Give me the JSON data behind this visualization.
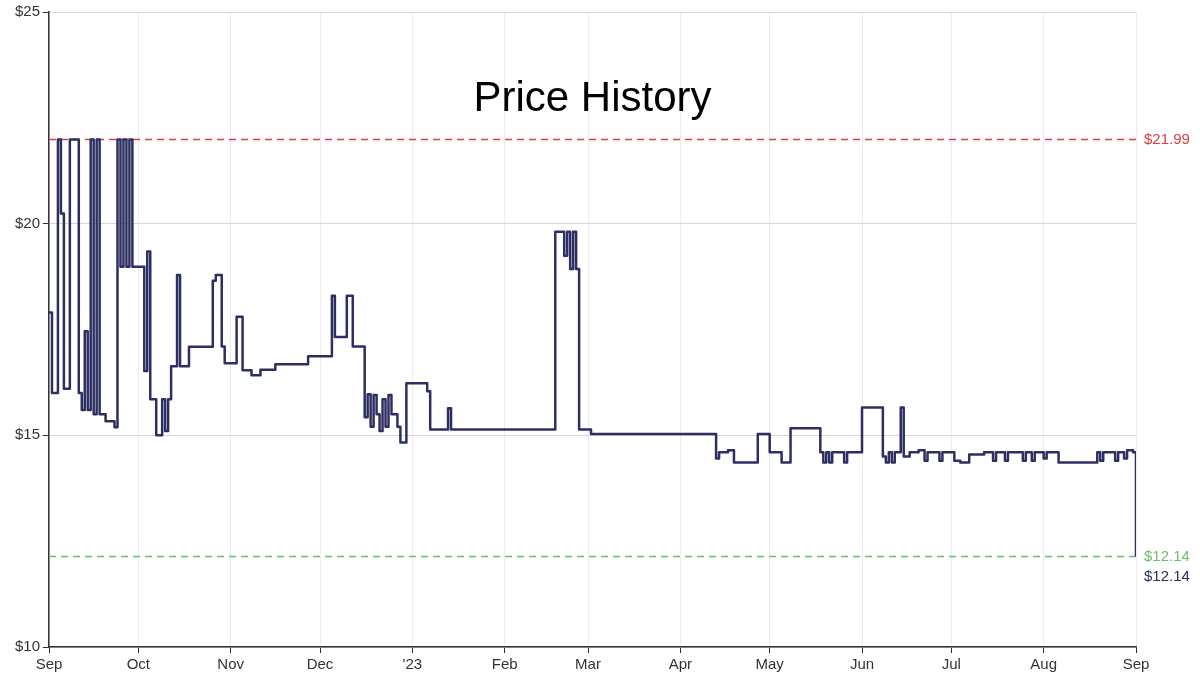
{
  "chart_data": {
    "type": "step",
    "title": "Price History",
    "series": [
      {
        "color": "#2d2f63",
        "x": [
          "2022-09-01",
          "2022-09-02",
          "2022-09-04",
          "2022-09-05",
          "2022-09-06",
          "2022-09-08",
          "2022-09-11",
          "2022-09-12",
          "2022-09-13",
          "2022-09-14",
          "2022-09-15",
          "2022-09-16",
          "2022-09-17",
          "2022-09-18",
          "2022-09-20",
          "2022-09-23",
          "2022-09-24",
          "2022-09-25",
          "2022-09-26",
          "2022-09-27",
          "2022-09-28",
          "2022-09-29",
          "2022-10-03",
          "2022-10-04",
          "2022-10-05",
          "2022-10-07",
          "2022-10-09",
          "2022-10-10",
          "2022-10-11",
          "2022-10-12",
          "2022-10-14",
          "2022-10-15",
          "2022-10-18",
          "2022-10-26",
          "2022-10-27",
          "2022-10-29",
          "2022-10-30",
          "2022-11-03",
          "2022-11-05",
          "2022-11-08",
          "2022-11-11",
          "2022-11-16",
          "2022-11-27",
          "2022-12-05",
          "2022-12-06",
          "2022-12-10",
          "2022-12-12",
          "2022-12-16",
          "2022-12-17",
          "2022-12-18",
          "2022-12-19",
          "2022-12-20",
          "2022-12-21",
          "2022-12-22",
          "2022-12-23",
          "2022-12-24",
          "2022-12-25",
          "2022-12-27",
          "2022-12-28",
          "2022-12-30",
          "2023-01-06",
          "2023-01-07",
          "2023-01-13",
          "2023-01-14",
          "2023-02-18",
          "2023-02-21",
          "2023-02-22",
          "2023-02-23",
          "2023-02-24",
          "2023-02-25",
          "2023-02-26",
          "2023-03-02",
          "2023-04-13",
          "2023-04-14",
          "2023-04-17",
          "2023-04-19",
          "2023-04-27",
          "2023-05-01",
          "2023-05-05",
          "2023-05-08",
          "2023-05-18",
          "2023-05-19",
          "2023-05-20",
          "2023-05-21",
          "2023-05-22",
          "2023-05-26",
          "2023-05-27",
          "2023-06-01",
          "2023-06-08",
          "2023-06-09",
          "2023-06-10",
          "2023-06-11",
          "2023-06-12",
          "2023-06-14",
          "2023-06-15",
          "2023-06-17",
          "2023-06-20",
          "2023-06-22",
          "2023-06-23",
          "2023-06-27",
          "2023-06-28",
          "2023-07-02",
          "2023-07-04",
          "2023-07-07",
          "2023-07-12",
          "2023-07-15",
          "2023-07-16",
          "2023-07-19",
          "2023-07-20",
          "2023-07-25",
          "2023-07-26",
          "2023-07-28",
          "2023-07-29",
          "2023-08-01",
          "2023-08-02",
          "2023-08-06",
          "2023-08-19",
          "2023-08-20",
          "2023-08-21",
          "2023-08-25",
          "2023-08-26",
          "2023-08-28",
          "2023-08-29",
          "2023-08-31",
          "2023-09-01"
        ],
        "values": [
          17.9,
          16.0,
          21.99,
          20.24,
          16.1,
          21.99,
          16.0,
          15.6,
          17.46,
          15.6,
          21.99,
          15.5,
          21.99,
          15.5,
          15.33,
          15.19,
          21.99,
          18.98,
          21.99,
          18.98,
          21.99,
          18.98,
          16.52,
          19.34,
          15.85,
          15.0,
          15.85,
          15.1,
          15.85,
          16.63,
          18.79,
          16.63,
          17.09,
          18.65,
          18.79,
          17.1,
          16.7,
          17.8,
          16.54,
          16.42,
          16.55,
          16.68,
          16.87,
          18.3,
          17.32,
          18.3,
          17.1,
          15.43,
          15.97,
          15.2,
          15.95,
          15.5,
          15.1,
          15.85,
          15.2,
          15.95,
          15.5,
          15.2,
          14.83,
          16.23,
          16.04,
          15.14,
          15.64,
          15.14,
          19.81,
          19.24,
          19.81,
          18.93,
          19.81,
          18.93,
          15.14,
          15.03,
          14.45,
          14.6,
          14.65,
          14.36,
          15.03,
          14.6,
          14.36,
          15.17,
          14.6,
          14.36,
          14.6,
          14.36,
          14.6,
          14.36,
          14.6,
          15.66,
          14.5,
          14.36,
          14.6,
          14.36,
          14.6,
          15.66,
          14.5,
          14.6,
          14.65,
          14.4,
          14.6,
          14.4,
          14.6,
          14.4,
          14.36,
          14.55,
          14.6,
          14.4,
          14.6,
          14.4,
          14.6,
          14.4,
          14.6,
          14.4,
          14.6,
          14.45,
          14.6,
          14.36,
          14.6,
          14.4,
          14.6,
          14.4,
          14.6,
          14.45,
          14.65,
          14.6,
          12.14
        ]
      }
    ],
    "xlim": [
      "2022-09-01",
      "2023-09-01"
    ],
    "xticks": [
      {
        "value": "2022-09-01",
        "label": "Sep"
      },
      {
        "value": "2022-10-01",
        "label": "Oct"
      },
      {
        "value": "2022-11-01",
        "label": "Nov"
      },
      {
        "value": "2022-12-01",
        "label": "Dec"
      },
      {
        "value": "2023-01-01",
        "label": "'23"
      },
      {
        "value": "2023-02-01",
        "label": "Feb"
      },
      {
        "value": "2023-03-01",
        "label": "Mar"
      },
      {
        "value": "2023-04-01",
        "label": "Apr"
      },
      {
        "value": "2023-05-01",
        "label": "May"
      },
      {
        "value": "2023-06-01",
        "label": "Jun"
      },
      {
        "value": "2023-07-01",
        "label": "Jul"
      },
      {
        "value": "2023-08-01",
        "label": "Aug"
      },
      {
        "value": "2023-09-01",
        "label": "Sep"
      }
    ],
    "ylim": [
      10,
      25
    ],
    "yticks": [
      {
        "value": 10,
        "label": "$10"
      },
      {
        "value": 15,
        "label": "$15"
      },
      {
        "value": 20,
        "label": "$20"
      },
      {
        "value": 25,
        "label": "$25"
      }
    ],
    "ref_lines": [
      {
        "axis": "y",
        "value": 21.99,
        "label": "$21.99",
        "color": "#d9403f",
        "line_style": "dashed"
      },
      {
        "axis": "y",
        "value": 12.14,
        "label": "$12.14",
        "color": "#6cc06a",
        "line_style": "dashed"
      }
    ],
    "annotations": [
      {
        "text": "$12.14",
        "x": "2023-09-01",
        "y": 12.14
      }
    ],
    "grid": true,
    "legend": false,
    "marker": "none",
    "line_style": "solid"
  }
}
